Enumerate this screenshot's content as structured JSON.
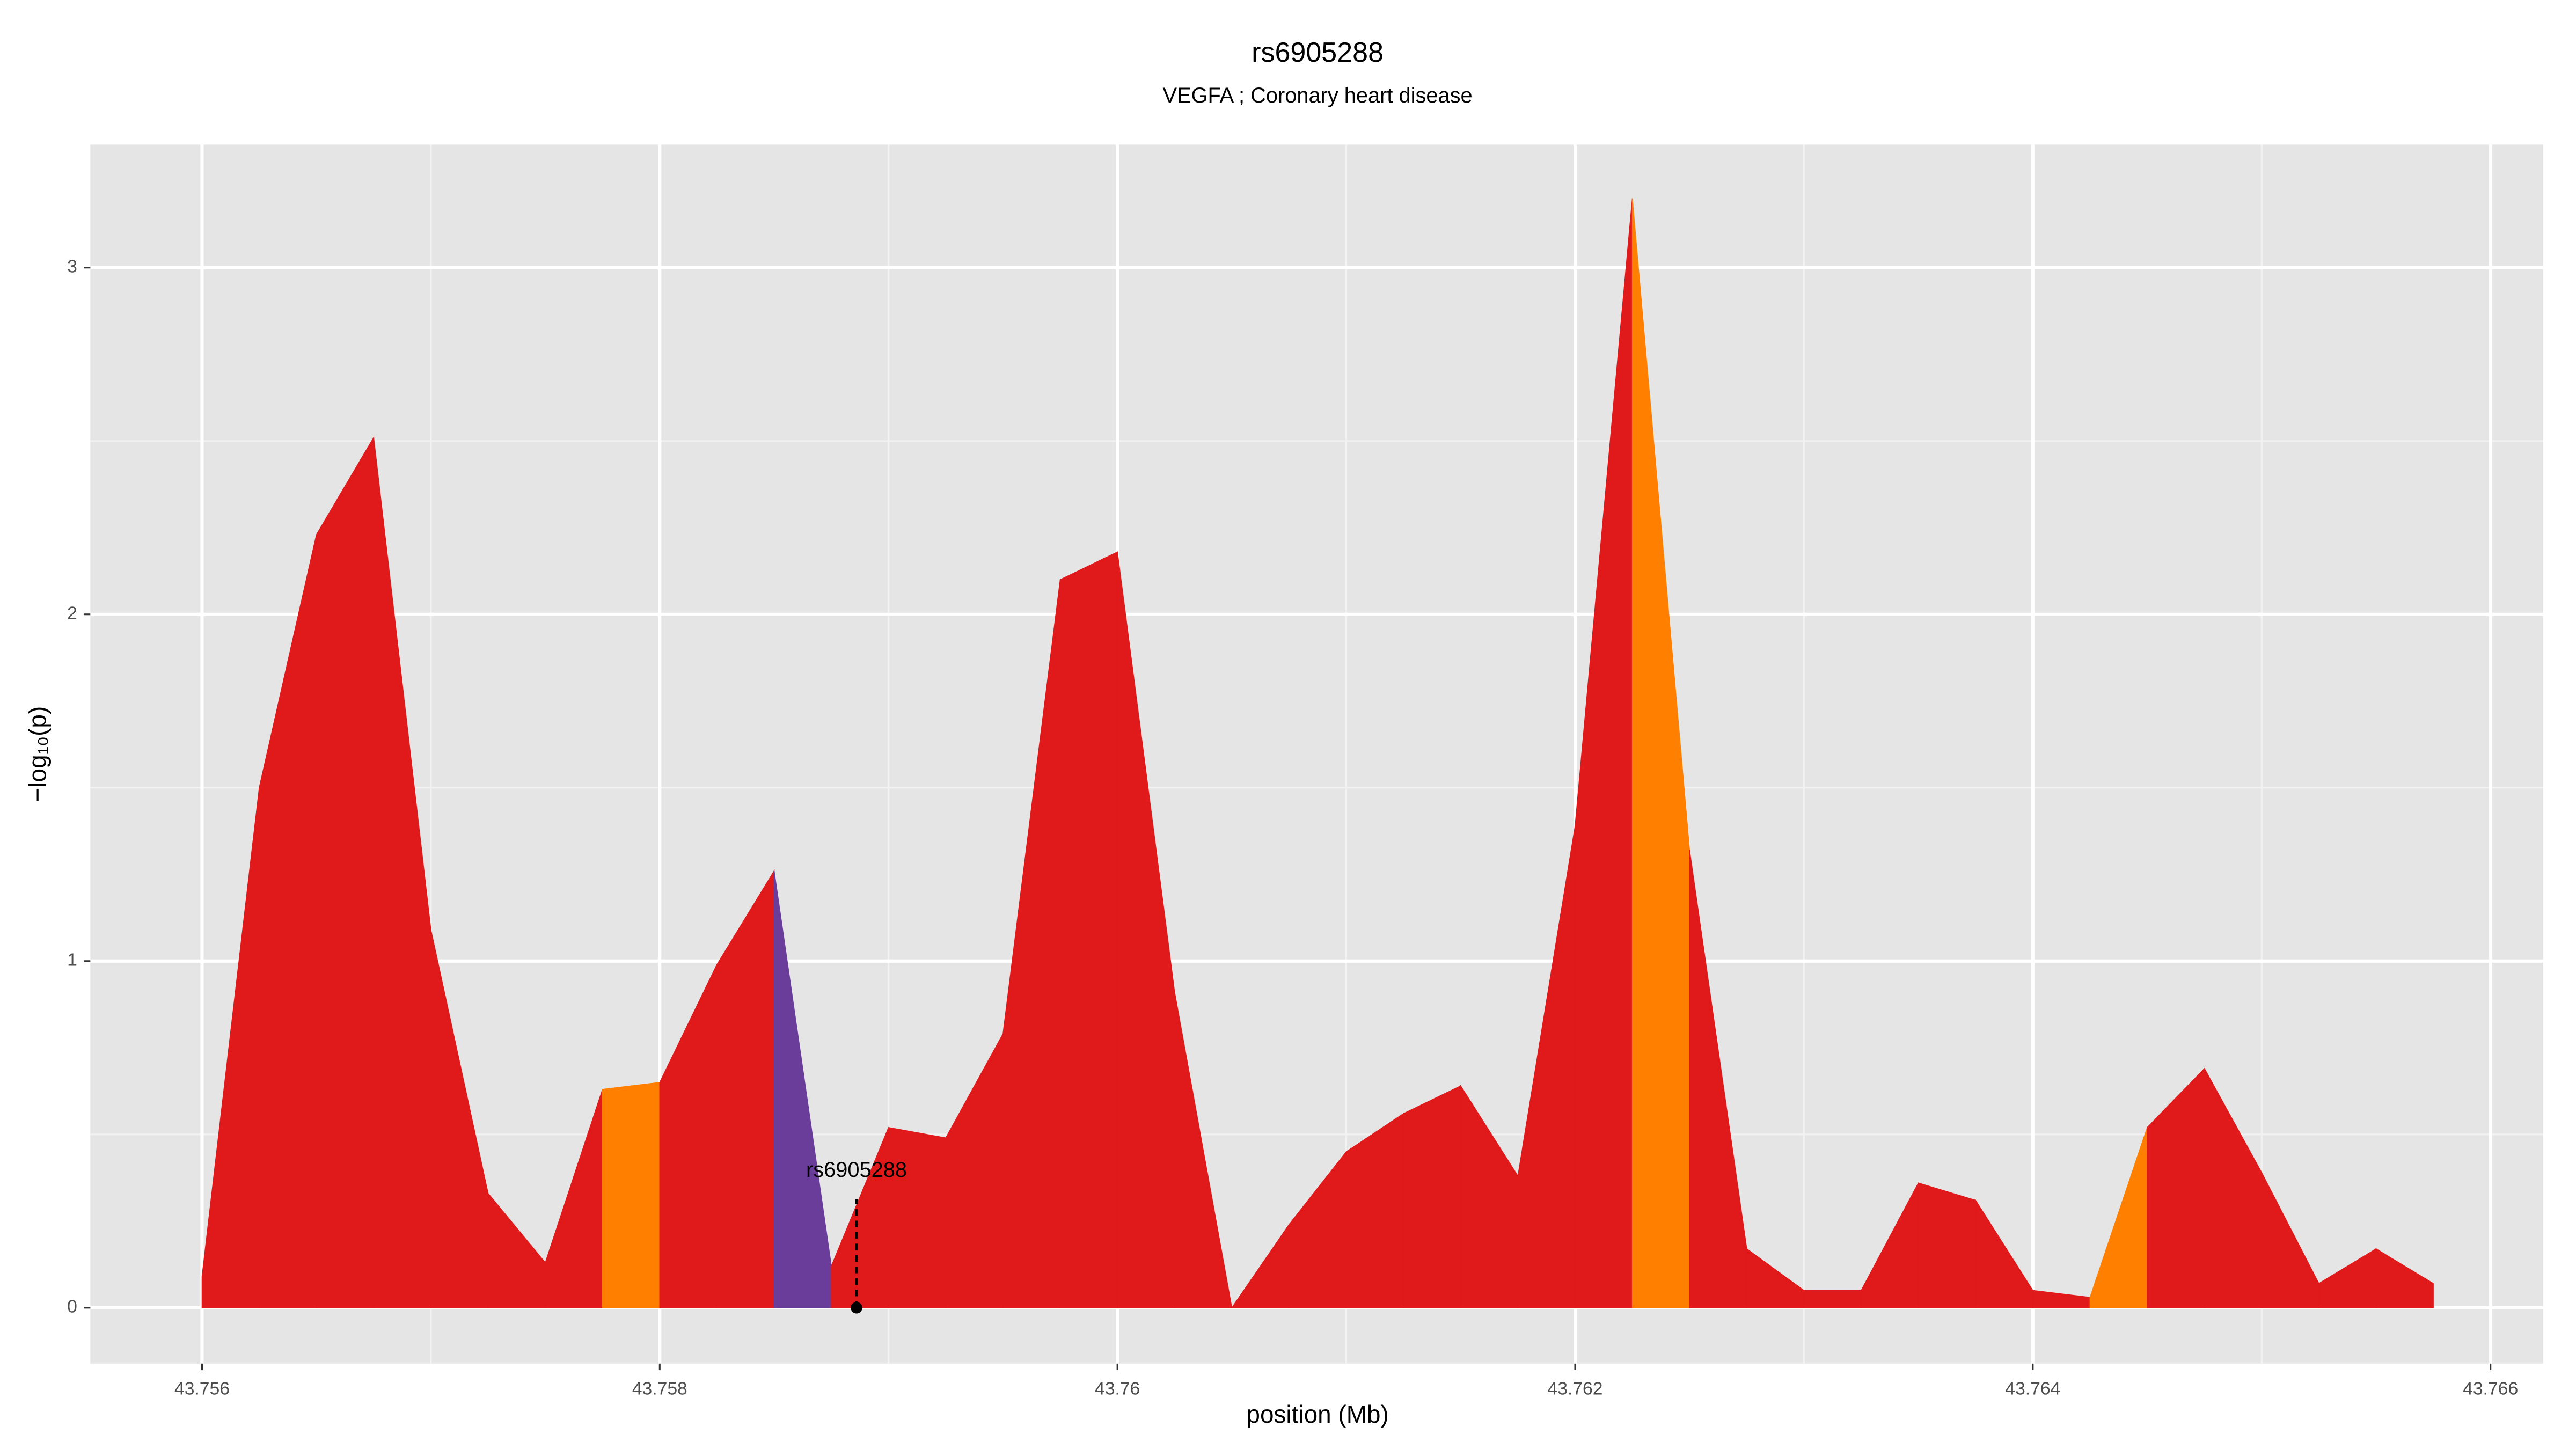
{
  "chart_data": {
    "type": "area",
    "title": "rs6905288",
    "subtitle": "VEGFA ; Coronary heart disease",
    "x_label": "position (Mb)",
    "y_label": "−log₁₀(p)",
    "x": [
      43.756,
      43.75625,
      43.7565,
      43.75675,
      43.757,
      43.75725,
      43.7575,
      43.75775,
      43.758,
      43.75825,
      43.7585,
      43.75875,
      43.759,
      43.75925,
      43.7595,
      43.75975,
      43.76,
      43.76025,
      43.7605,
      43.76075,
      43.761,
      43.76125,
      43.7615,
      43.76175,
      43.762,
      43.76225,
      43.7625,
      43.76275,
      43.763,
      43.76325,
      43.7635,
      43.76375,
      43.764,
      43.76425,
      43.7645,
      43.76475,
      43.765,
      43.76525,
      43.7655,
      43.76575
    ],
    "values": [
      0.09,
      1.5,
      2.23,
      2.51,
      1.09,
      0.33,
      0.13,
      0.63,
      0.65,
      0.99,
      1.26,
      0.12,
      0.52,
      0.49,
      0.79,
      2.1,
      2.18,
      0.91,
      0.0,
      0.24,
      0.45,
      0.56,
      0.64,
      0.38,
      1.39,
      3.2,
      1.32,
      0.17,
      0.05,
      0.05,
      0.36,
      0.31,
      0.05,
      0.03,
      0.52,
      0.69,
      0.39,
      0.07,
      0.17,
      0.07
    ],
    "segment_colors": [
      "#e0191b",
      "#e0191b",
      "#e0191b",
      "#e0191b",
      "#e0191b",
      "#e0191b",
      "#e0191b",
      "#ff7f00",
      "#e0191b",
      "#e0191b",
      "#6a3d9a",
      "#e0191b",
      "#e0191b",
      "#e0191b",
      "#e0191b",
      "#e0191b",
      "#e0191b",
      "#e0191b",
      "#e0191b",
      "#e0191b",
      "#e0191b",
      "#e0191b",
      "#e0191b",
      "#e0191b",
      "#e0191b",
      "#ff7f00",
      "#e0191b",
      "#e0191b",
      "#e0191b",
      "#e0191b",
      "#e0191b",
      "#e0191b",
      "#e0191b",
      "#ff7f00",
      "#e0191b",
      "#e0191b",
      "#e0191b",
      "#e0191b",
      "#e0191b"
    ],
    "annotation": {
      "label": "rs6905288",
      "x": 43.75886,
      "y": 0
    },
    "xlim": [
      43.755512,
      43.76623
    ],
    "ylim": [
      -0.161,
      3.355
    ],
    "xticks": [
      43.756,
      43.758,
      43.76,
      43.762,
      43.764,
      43.766
    ],
    "yticks": [
      0,
      1,
      2,
      3
    ],
    "grid": true
  }
}
